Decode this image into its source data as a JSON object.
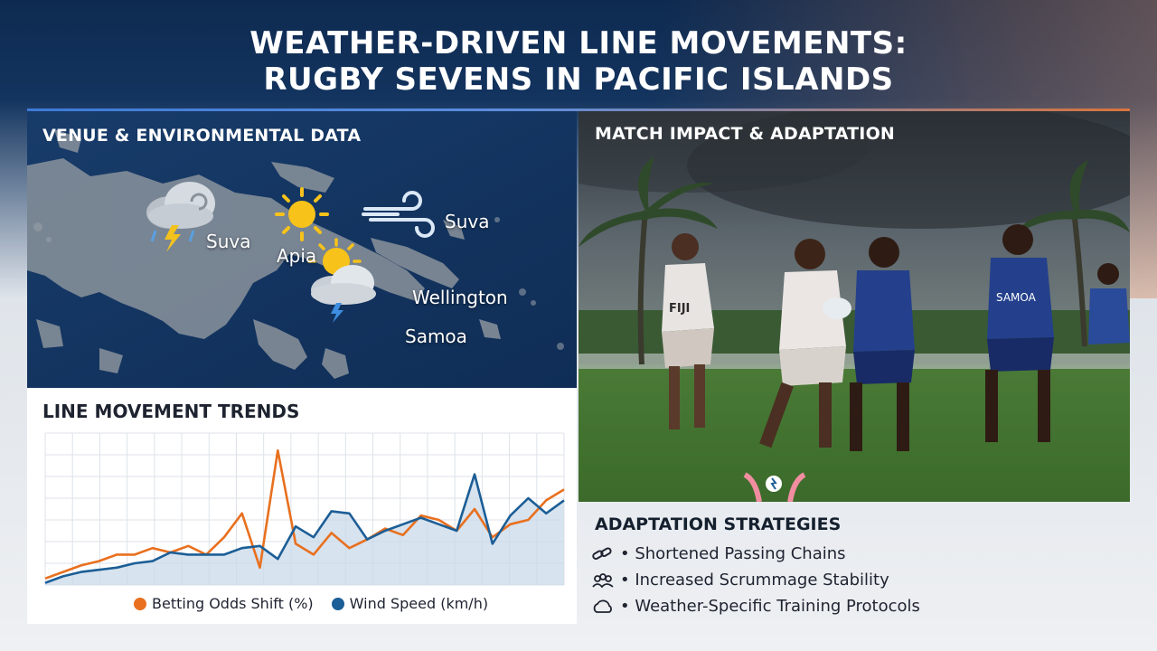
{
  "header": {
    "title_line1": "WEATHER-DRIVEN LINE MOVEMENTS:",
    "title_line2": "RUGBY SEVENS IN PACIFIC ISLANDS"
  },
  "venue_panel": {
    "title": "VENUE & ENVIRONMENTAL DATA",
    "locations": [
      {
        "name": "Suva",
        "weather_icon": "storm-cloud-icon"
      },
      {
        "name": "Apia",
        "weather_icon": "sun-icon"
      },
      {
        "name": "Suva",
        "weather_icon": "wind-icon"
      },
      {
        "name": "Wellington",
        "weather_icon": "partly-stormy-icon"
      },
      {
        "name": "Samoa",
        "weather_icon": ""
      }
    ]
  },
  "match_panel": {
    "title": "MATCH IMPACT & ADAPTATION",
    "jersey_text": "SAMOA",
    "chest_text": "FIJI"
  },
  "chart_data": {
    "type": "line",
    "title": "LINE MOVEMENT TRENDS",
    "xlabel": "",
    "ylabel": "",
    "grid": true,
    "legend_position": "bottom",
    "x": [
      0,
      1,
      2,
      3,
      4,
      5,
      6,
      7,
      8,
      9,
      10,
      11,
      12,
      13,
      14,
      15,
      16,
      17,
      18,
      19,
      20,
      21,
      22,
      23,
      24,
      25,
      26,
      27,
      28,
      29
    ],
    "series": [
      {
        "name": "Betting Odds Shift (%)",
        "color": "#e8701f",
        "values": [
          3,
          6,
          9,
          11,
          14,
          14,
          17,
          15,
          18,
          14,
          22,
          33,
          8,
          62,
          19,
          14,
          24,
          17,
          21,
          26,
          23,
          32,
          30,
          25,
          35,
          22,
          28,
          30,
          39,
          44
        ]
      },
      {
        "name": "Wind Speed (km/h)",
        "color": "#1c5e96",
        "values": [
          1,
          4,
          6,
          7,
          8,
          10,
          11,
          15,
          14,
          14,
          14,
          17,
          18,
          12,
          27,
          22,
          34,
          33,
          21,
          25,
          28,
          31,
          28,
          25,
          51,
          19,
          32,
          40,
          33,
          39
        ]
      }
    ],
    "ylim": [
      0,
      70
    ]
  },
  "adaptation": {
    "title": "ADAPTATION STRATEGIES",
    "items": [
      {
        "label": "• Shortened Passing Chains",
        "icon": "chain-link-icon"
      },
      {
        "label": "• Increased Scrummage Stability",
        "icon": "scrum-icon"
      },
      {
        "label": "• Weather-Specific Training Protocols",
        "icon": "cloud-outline-icon"
      }
    ]
  },
  "colors": {
    "navy": "#10305a",
    "orange": "#e8701f",
    "blue": "#1c5e96"
  }
}
